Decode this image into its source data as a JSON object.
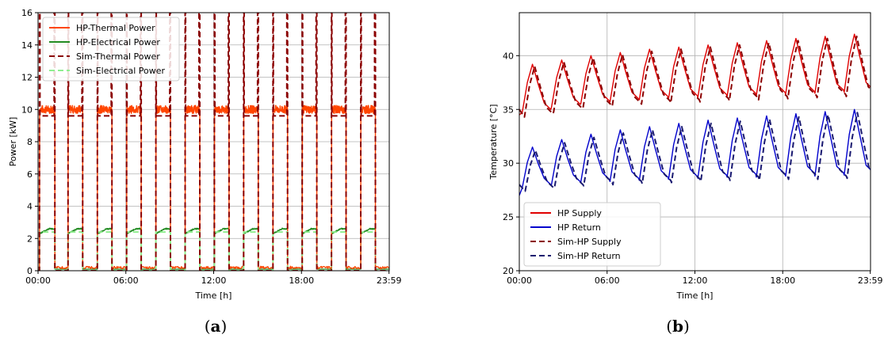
{
  "chart_data": [
    {
      "type": "line",
      "panel_label": "(a)",
      "panel_letter": "a",
      "xlabel": "Time [h]",
      "ylabel": "Power [kW]",
      "xlim": [
        0,
        24
      ],
      "ylim": [
        0,
        16
      ],
      "xticks": [
        0,
        6,
        12,
        18,
        23.983
      ],
      "xtick_labels": [
        "00:00",
        "06:00",
        "12:00",
        "18:00",
        "23:59"
      ],
      "yticks": [
        0,
        2,
        4,
        6,
        8,
        10,
        12,
        14,
        16
      ],
      "grid": true,
      "legend_position": "upper-left",
      "cycles": {
        "on_start_hours": [
          0.1,
          2.05,
          4.05,
          6.05,
          8.05,
          10.05,
          12.05,
          14.05,
          16.05,
          18.05,
          20.05,
          22.05
        ],
        "on_end_hours": [
          1.15,
          3.05,
          5.05,
          7.05,
          9.05,
          11.05,
          13.05,
          15.05,
          17.05,
          19.05,
          21.05,
          23.05
        ],
        "hp_thermal_on_kw": 10.0,
        "hp_thermal_off_kw": 0.2,
        "sim_thermal_on_kw": 9.6,
        "sim_thermal_spike_kw": 16,
        "hp_electrical_on_kw_start": 2.3,
        "hp_electrical_on_kw_end": 2.6,
        "hp_electrical_off_kw": 0.1,
        "sim_electrical_on_kw": 2.4
      },
      "series": [
        {
          "name": "HP-Thermal Power",
          "color": "#ff4500",
          "style": "solid"
        },
        {
          "name": "HP-Electrical Power",
          "color": "#228b22",
          "style": "solid"
        },
        {
          "name": "Sim-Thermal Power",
          "color": "#8b0000",
          "style": "dashed"
        },
        {
          "name": "Sim-Electrical Power",
          "color": "#90ee90",
          "style": "dashed"
        }
      ]
    },
    {
      "type": "line",
      "panel_label": "(b)",
      "panel_letter": "b",
      "xlabel": "Time [h]",
      "ylabel": "Temperature [°C]",
      "xlim": [
        0,
        24
      ],
      "ylim": [
        20,
        44
      ],
      "xticks": [
        0,
        6,
        12,
        18,
        23.983
      ],
      "xtick_labels": [
        "00:00",
        "06:00",
        "12:00",
        "18:00",
        "23:59"
      ],
      "yticks": [
        20,
        25,
        30,
        35,
        40
      ],
      "grid": true,
      "legend_position": "lower-left",
      "cycles": {
        "period_hours": 2,
        "start_hour": 0.2,
        "supply_peaks_c": [
          39.2,
          39.6,
          40.0,
          40.3,
          40.6,
          40.8,
          41.0,
          41.2,
          41.4,
          41.6,
          41.8,
          42.0
        ],
        "supply_troughs_c": [
          35.0,
          35.5,
          35.8,
          36.0,
          36.2,
          36.3,
          36.4,
          36.5,
          36.6,
          36.7,
          36.8,
          36.9
        ],
        "return_peaks_c": [
          31.5,
          32.2,
          32.7,
          33.1,
          33.4,
          33.7,
          34.0,
          34.2,
          34.4,
          34.6,
          34.8,
          35.0
        ],
        "return_troughs_c": [
          28.0,
          28.3,
          28.5,
          28.6,
          28.7,
          28.8,
          28.9,
          29.0,
          29.0,
          29.1,
          29.1,
          29.2
        ]
      },
      "series": [
        {
          "name": "HP Supply",
          "color": "#e00000",
          "style": "solid"
        },
        {
          "name": "HP Return",
          "color": "#0000cd",
          "style": "solid"
        },
        {
          "name": "Sim-HP Supply",
          "color": "#8b0000",
          "style": "dashed"
        },
        {
          "name": "Sim-HP Return",
          "color": "#191970",
          "style": "dashed"
        }
      ]
    }
  ]
}
